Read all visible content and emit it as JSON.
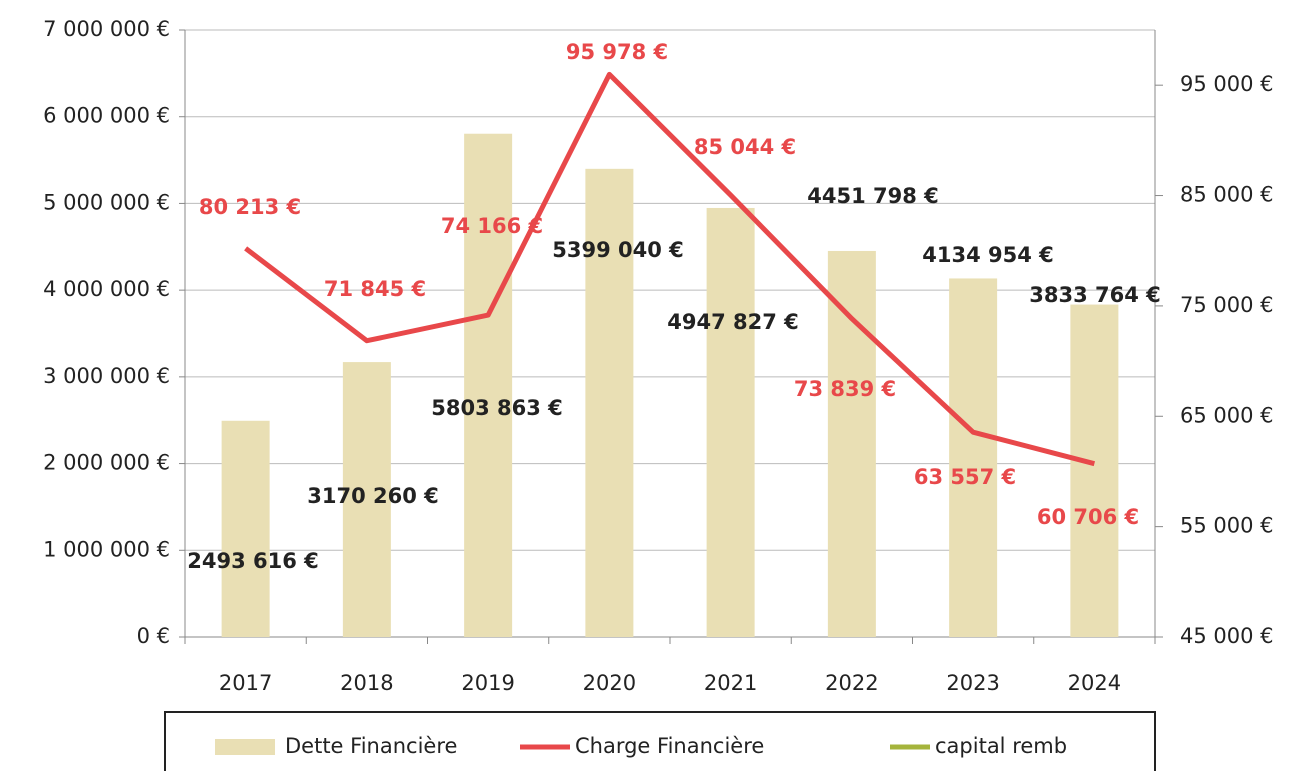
{
  "chart_data": {
    "type": "bar+line",
    "categories": [
      "2017",
      "2018",
      "2019",
      "2020",
      "2021",
      "2022",
      "2023",
      "2024"
    ],
    "series": [
      {
        "name": "Dette Financière",
        "type": "bar",
        "color": "#e9dfb4",
        "values": [
          2493616,
          3170260,
          5803863,
          5399040,
          4947827,
          4451798,
          4134954,
          3833764
        ],
        "value_labels": [
          "2493 616 €",
          "3170 260 €",
          "5803 863 €",
          "5399 040 €",
          "4947 827 €",
          "4451 798 €",
          "4134 954 €",
          "3833 764 €"
        ]
      },
      {
        "name": "Charge Financière",
        "type": "line",
        "axis": "y2",
        "color": "#e8484a",
        "values": [
          80213,
          71845,
          74166,
          95978,
          85044,
          73839,
          63557,
          60706
        ],
        "value_labels": [
          "80 213 €",
          "71 845 €",
          "74 166 €",
          "95 978 €",
          "85 044 €",
          "73 839 €",
          "63 557 €",
          "60 706 €"
        ]
      },
      {
        "name": "capital remb",
        "type": "line",
        "axis": "y2",
        "color": "#a5b43c",
        "values": [
          null,
          null,
          null,
          null,
          null,
          null,
          null,
          null
        ]
      }
    ],
    "ylim": [
      0,
      7000000
    ],
    "yticks": [
      {
        "value": 0,
        "label": "0 €"
      },
      {
        "value": 1000000,
        "label": "1 000 000 €"
      },
      {
        "value": 2000000,
        "label": "2 000 000 €"
      },
      {
        "value": 3000000,
        "label": "3 000 000 €"
      },
      {
        "value": 4000000,
        "label": "4 000 000 €"
      },
      {
        "value": 5000000,
        "label": "5 000 000 €"
      },
      {
        "value": 6000000,
        "label": "6 000 000 €"
      },
      {
        "value": 7000000,
        "label": "7 000 000 €"
      }
    ],
    "y2lim": [
      45000,
      100000
    ],
    "y2ticks": [
      {
        "value": 45000,
        "label": "45 000 €"
      },
      {
        "value": 55000,
        "label": "55 000 €"
      },
      {
        "value": 65000,
        "label": "65 000 €"
      },
      {
        "value": 75000,
        "label": "75 000 €"
      },
      {
        "value": 85000,
        "label": "85 000 €"
      },
      {
        "value": 95000,
        "label": "95 000 €"
      }
    ],
    "grid": true,
    "legend": "bottom"
  }
}
